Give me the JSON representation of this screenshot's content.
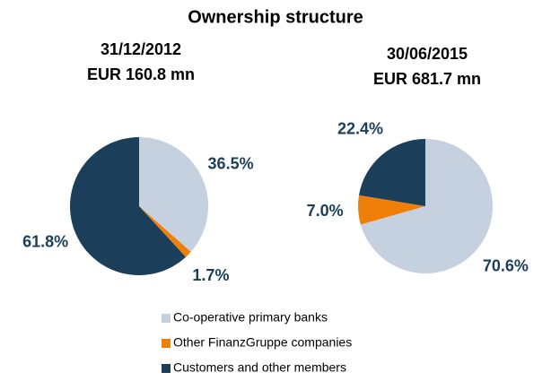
{
  "title": "Ownership structure",
  "chart_data": [
    {
      "type": "pie",
      "title": "31/12/2012",
      "subtitle": "EUR 160.8 mn",
      "categories": [
        "Co-operative primary banks",
        "Other FinanzGruppe companies",
        "Customers and other members"
      ],
      "values": [
        36.5,
        1.7,
        61.8
      ],
      "value_labels": [
        "36.5%",
        "1.7%",
        "61.8%"
      ],
      "colors": [
        "#c5d1df",
        "#f07f09",
        "#1b3f5a"
      ]
    },
    {
      "type": "pie",
      "title": "30/06/2015",
      "subtitle": "EUR 681.7 mn",
      "categories": [
        "Co-operative primary banks",
        "Other FinanzGruppe companies",
        "Customers and other members"
      ],
      "values": [
        70.6,
        7.0,
        22.4
      ],
      "value_labels": [
        "70.6%",
        "7.0%",
        "22.4%"
      ],
      "colors": [
        "#c5d1df",
        "#f07f09",
        "#1b3f5a"
      ]
    }
  ]
}
